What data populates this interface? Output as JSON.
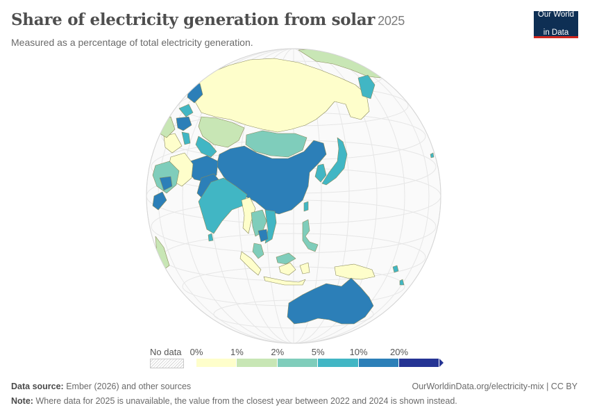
{
  "header": {
    "title": "Share of electricity generation from solar",
    "year": "2025",
    "subtitle": "Measured as a percentage of total electricity generation."
  },
  "logo": {
    "line1": "Our World",
    "line2": "in Data",
    "bg_color": "#0e2f54",
    "accent_color": "#ce261e"
  },
  "legend": {
    "no_data_label": "No data",
    "ticks": [
      "0%",
      "1%",
      "2%",
      "5%",
      "10%",
      "20%"
    ],
    "bins": [
      {
        "range": "0–1%",
        "color": "#fefecb"
      },
      {
        "range": "1–2%",
        "color": "#c8e6b5"
      },
      {
        "range": "2–5%",
        "color": "#7fcdbb"
      },
      {
        "range": "5–10%",
        "color": "#41b6c4"
      },
      {
        "range": "10–20%",
        "color": "#2c7fb8"
      },
      {
        "range": ">20%",
        "color": "#253494"
      }
    ]
  },
  "map": {
    "projection": "orthographic",
    "center": "Asia-Pacific",
    "regions": [
      {
        "name": "Russia",
        "bin": "0–1%"
      },
      {
        "name": "China",
        "bin": "10–20%"
      },
      {
        "name": "India",
        "bin": "5–10%"
      },
      {
        "name": "Australia",
        "bin": "10–20%"
      },
      {
        "name": "Japan",
        "bin": "5–10%"
      },
      {
        "name": "South Korea",
        "bin": "5–10%"
      },
      {
        "name": "Mongolia",
        "bin": "2–5%"
      },
      {
        "name": "Kazakhstan",
        "bin": "1–2%"
      },
      {
        "name": "Pakistan",
        "bin": "10–20%"
      },
      {
        "name": "Vietnam",
        "bin": "5–10%"
      },
      {
        "name": "Cambodia",
        "bin": "10–20%"
      },
      {
        "name": "Philippines",
        "bin": "2–5%"
      },
      {
        "name": "Indonesia",
        "bin": "0–1%"
      },
      {
        "name": "Papua New Guinea",
        "bin": "0–1%"
      },
      {
        "name": "Thailand",
        "bin": "2–5%"
      },
      {
        "name": "Myanmar",
        "bin": "0–1%"
      },
      {
        "name": "Iran",
        "bin": "0–1%"
      },
      {
        "name": "Saudi Arabia",
        "bin": "2–5%"
      },
      {
        "name": "Turkey",
        "bin": "10–20%"
      },
      {
        "name": "Afghanistan",
        "bin": "10–20%"
      },
      {
        "name": "Uzbekistan",
        "bin": "5–10%"
      },
      {
        "name": "Malaysia",
        "bin": "2–5%"
      },
      {
        "name": "Alaska (USA)",
        "bin": "1–2%"
      }
    ]
  },
  "footer": {
    "source_label": "Data source:",
    "source_text": "Ember (2026) and other sources",
    "url": "OurWorldinData.org/electricity-mix | CC BY",
    "note_label": "Note:",
    "note_text": "Where data for 2025 is unavailable, the value from the closest year between 2022 and 2024 is shown instead."
  }
}
